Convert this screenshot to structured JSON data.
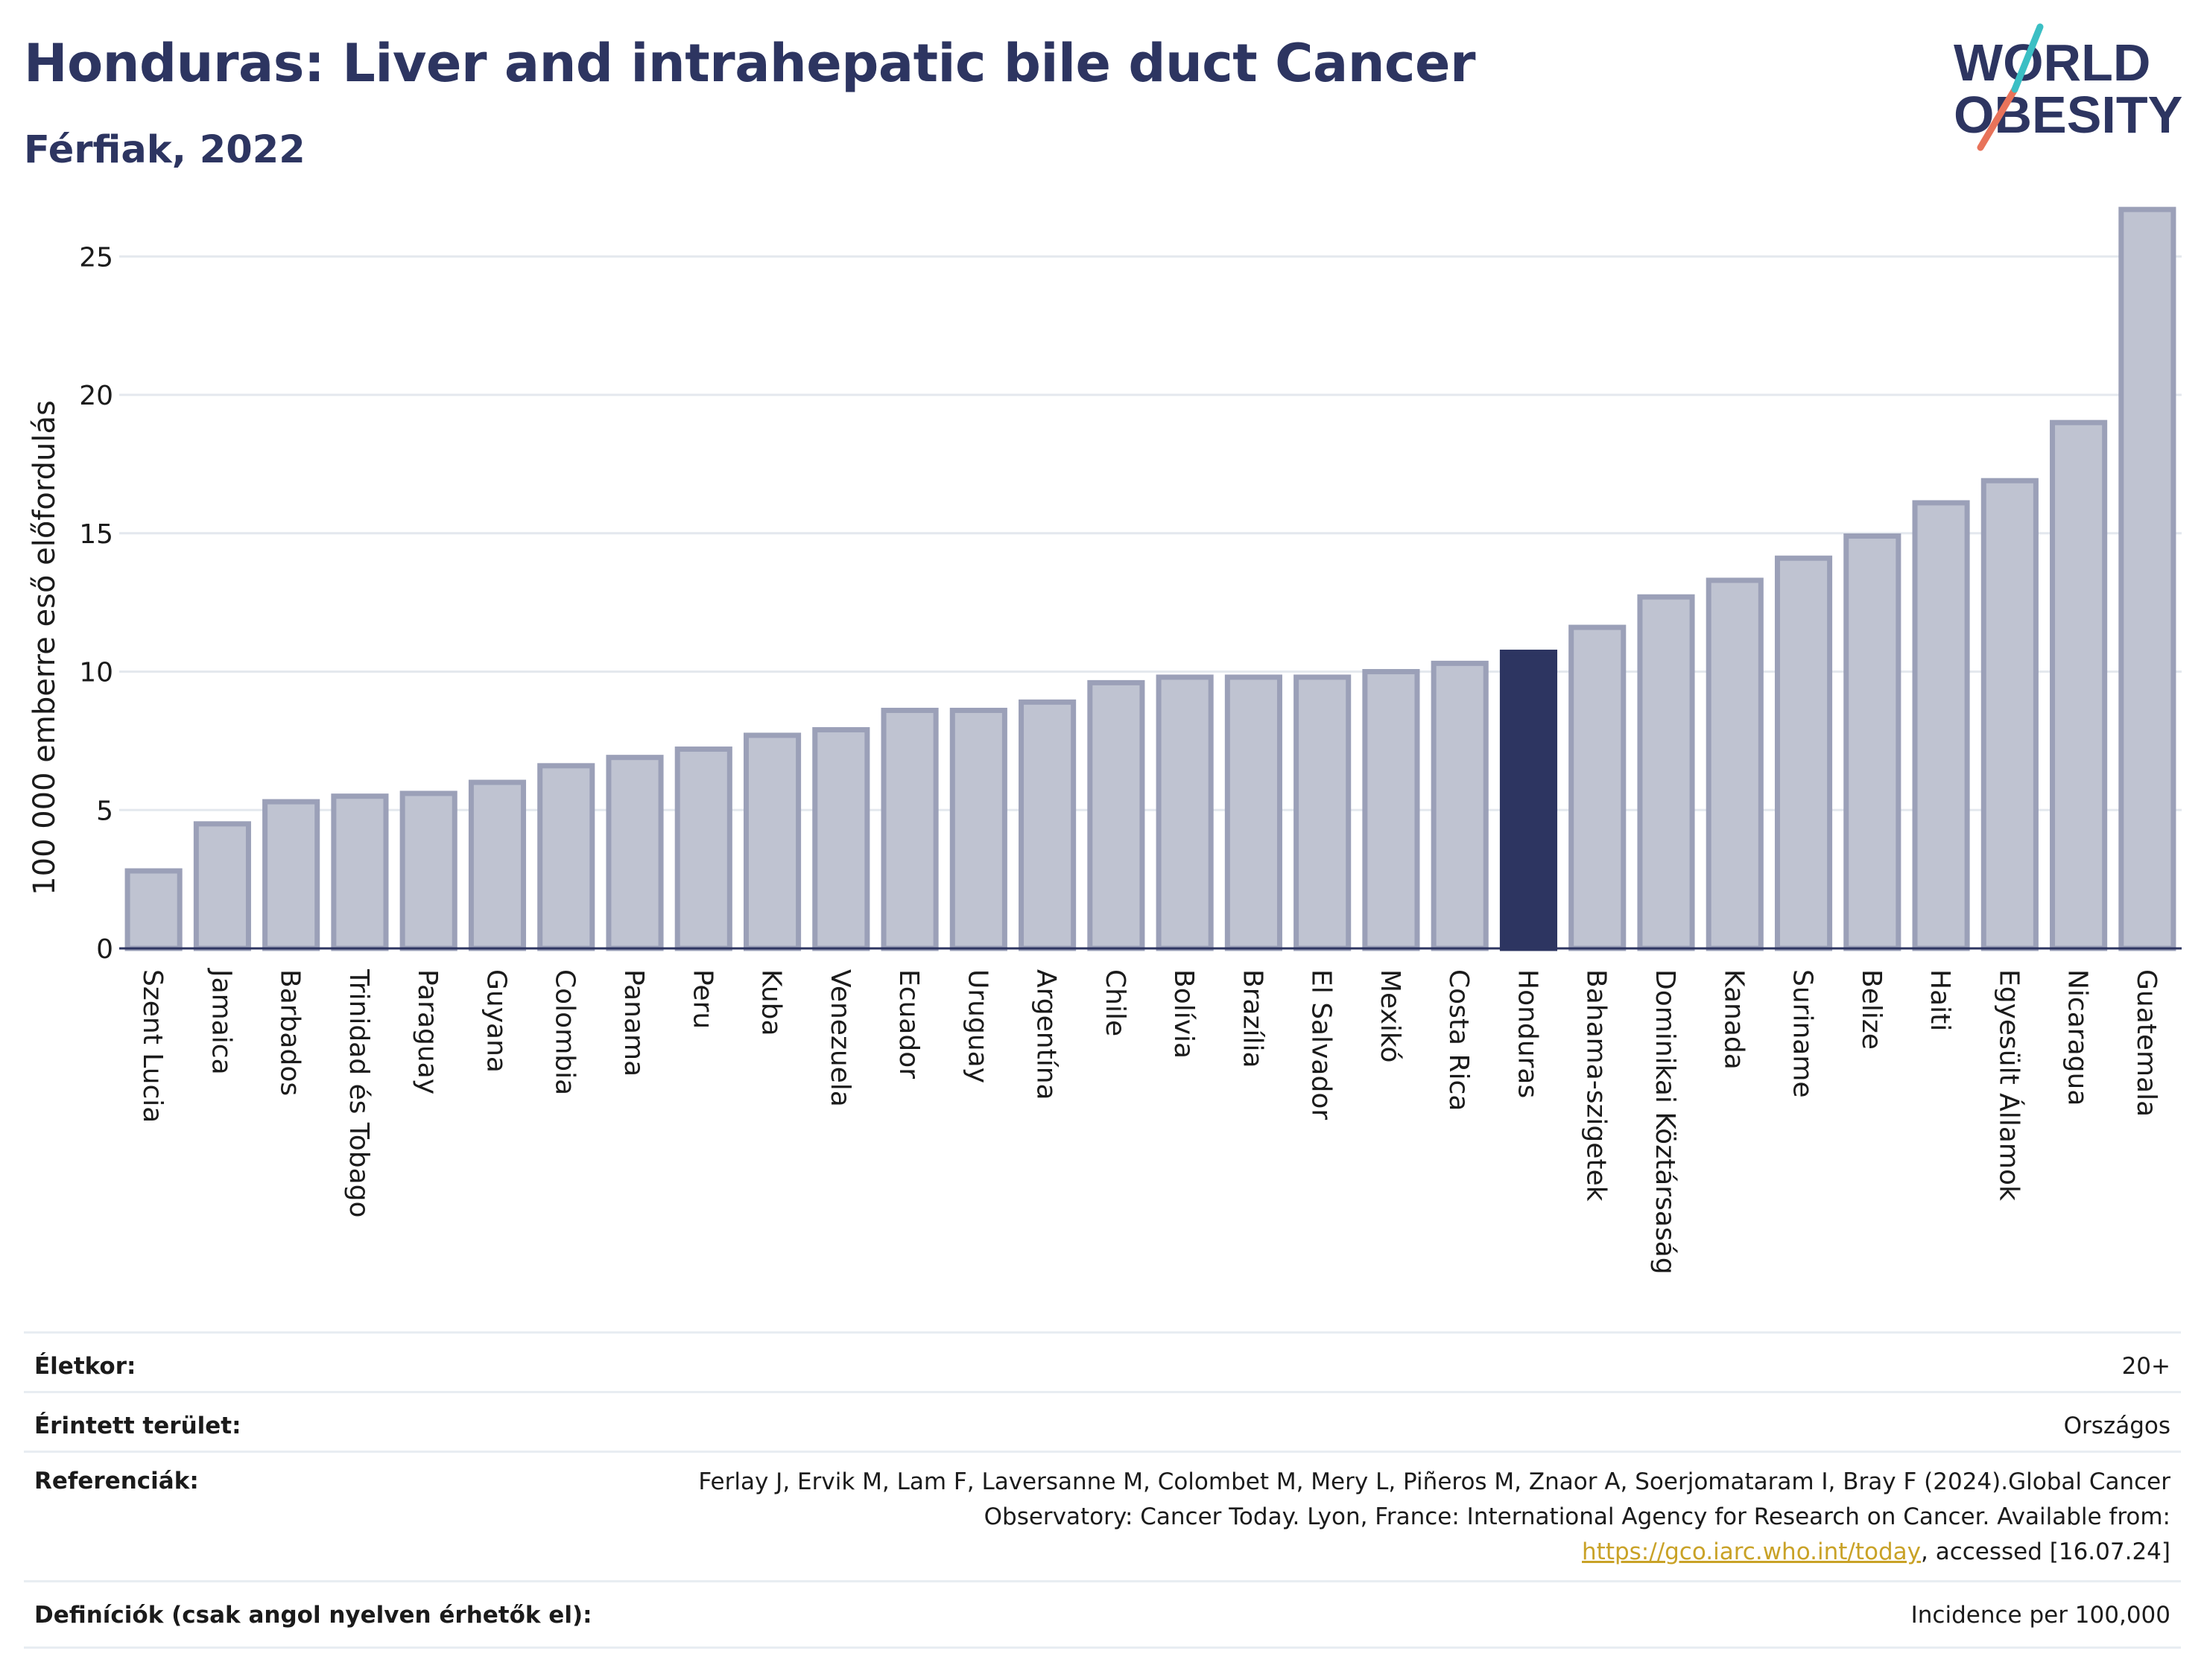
{
  "header": {
    "title": "Honduras: Liver and intrahepatic bile duct Cancer",
    "subtitle": "Férfiak, 2022"
  },
  "logo": {
    "line1": "WORLD",
    "line2": "OBESITY"
  },
  "colors": {
    "highlight": "#2d3561",
    "bar_fill": "#bfc3d1",
    "bar_stroke": "#9ba0b8",
    "grid": "#e4e8ee",
    "accent_teal": "#3bbfc4",
    "accent_coral": "#e8735a"
  },
  "chart_data": {
    "type": "bar",
    "ylabel": "100 000 emberre eső előfordulás",
    "xlabel": "",
    "ylim": [
      0,
      27
    ],
    "yticks": [
      0,
      5,
      10,
      15,
      20,
      25
    ],
    "highlight": "Honduras",
    "categories": [
      "Szent Lucia",
      "Jamaica",
      "Barbados",
      "Trinidad és Tobago",
      "Paraguay",
      "Guyana",
      "Colombia",
      "Panama",
      "Peru",
      "Kuba",
      "Venezuela",
      "Ecuador",
      "Uruguay",
      "Argentína",
      "Chile",
      "Bolívia",
      "Brazília",
      "El Salvador",
      "Mexikó",
      "Costa Rica",
      "Honduras",
      "Bahama-szigetek",
      "Dominikai Köztársaság",
      "Kanada",
      "Suriname",
      "Belize",
      "Haiti",
      "Egyesült Államok",
      "Nicaragua",
      "Guatemala"
    ],
    "values": [
      2.8,
      4.5,
      5.3,
      5.5,
      5.6,
      6.0,
      6.6,
      6.9,
      7.2,
      7.7,
      7.9,
      8.6,
      8.6,
      8.9,
      9.6,
      9.8,
      9.8,
      9.8,
      10.0,
      10.3,
      10.7,
      11.6,
      12.7,
      13.3,
      14.1,
      14.9,
      16.1,
      16.9,
      19.0,
      26.7
    ],
    "grid": true
  },
  "meta": {
    "age_label": "Életkor:",
    "age_value": "20+",
    "area_label": "Érintett terület:",
    "area_value": "Országos",
    "ref_label": "Referenciák:",
    "ref_text_1": "Ferlay J, Ervik M, Lam F, Laversanne M, Colombet M, Mery L, Piñeros M, Znaor A, Soerjomataram I, Bray F (2024).Global Cancer Observatory: Cancer Today. Lyon, France: International Agency for Research on Cancer. Available from: ",
    "ref_link": "https://gco.iarc.who.int/today",
    "ref_text_2": ", accessed [16.07.24]",
    "def_label": "Definíciók (csak angol nyelven érhetők el):",
    "def_value": "Incidence per 100,000"
  }
}
